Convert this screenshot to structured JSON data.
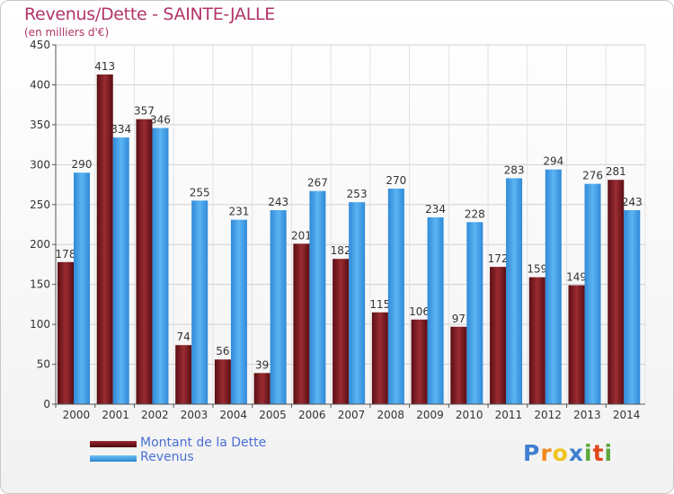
{
  "chart_data": {
    "type": "bar",
    "title": "Revenus/Dette - SAINTE-JALLE",
    "subtitle": "(en milliers d'€)",
    "categories": [
      "2000",
      "2001",
      "2002",
      "2003",
      "2004",
      "2005",
      "2006",
      "2007",
      "2008",
      "2009",
      "2010",
      "2011",
      "2012",
      "2013",
      "2014"
    ],
    "series": [
      {
        "name": "Montant de la Dette",
        "color": "#7a1a20",
        "values": [
          178,
          413,
          357,
          74,
          56,
          39,
          201,
          182,
          115,
          106,
          97,
          172,
          159,
          149,
          281
        ]
      },
      {
        "name": "Revenus",
        "color": "#3f9fe6",
        "values": [
          290,
          334,
          346,
          255,
          231,
          243,
          267,
          253,
          270,
          234,
          228,
          283,
          294,
          276,
          243
        ]
      }
    ],
    "ylim": [
      0,
      450
    ],
    "yticks": [
      0,
      50,
      100,
      150,
      200,
      250,
      300,
      350,
      400,
      450
    ],
    "grid": true,
    "legend_position": "bottom-left"
  },
  "logo": {
    "letters": [
      "P",
      "r",
      "o",
      "x",
      "i",
      "t",
      "i"
    ],
    "colors": [
      "#3f7fd0",
      "#f08a1c",
      "#f0c21c",
      "#3f7fd0",
      "#5aa83a",
      "#e0461c",
      "#5aa83a"
    ]
  }
}
